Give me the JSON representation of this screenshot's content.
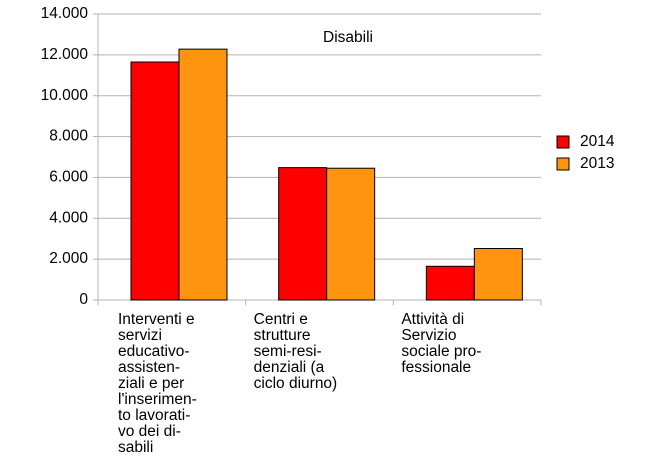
{
  "chart_data": {
    "type": "bar",
    "title": "Disabili",
    "categories": [
      [
        "Interventi e",
        "servizi",
        "educativo-",
        "assisten-",
        "ziali e per",
        "l'inserimen-",
        "to lavorati-",
        "vo dei di-",
        "sabili"
      ],
      [
        "Centri e",
        "strutture",
        "semi-resi-",
        "denziali (a",
        "ciclo diurno)"
      ],
      [
        "Attività di",
        "Servizio",
        "sociale pro-",
        "fessionale"
      ]
    ],
    "series": [
      {
        "name": "2014",
        "color": "#ff0000",
        "values": [
          11650,
          6480,
          1650
        ]
      },
      {
        "name": "2013",
        "color": "#ff950e",
        "values": [
          12280,
          6450,
          2520
        ]
      }
    ],
    "ylim": [
      0,
      14000
    ],
    "yticks": [
      0,
      {
        "value": 2000,
        "label": "2.000"
      },
      {
        "value": 4000,
        "label": "4.000"
      },
      {
        "value": 6000,
        "label": "6.000"
      },
      {
        "value": 8000,
        "label": "8.000"
      },
      {
        "value": 10000,
        "label": "10.000"
      },
      {
        "value": 12000,
        "label": "12.000"
      },
      {
        "value": 14000,
        "label": "14.000"
      }
    ],
    "grid": true,
    "legend": "right"
  }
}
